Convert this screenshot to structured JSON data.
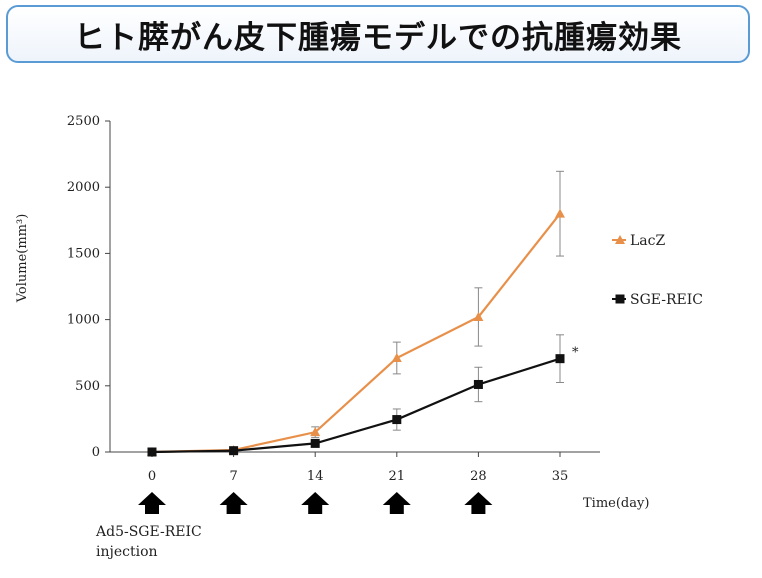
{
  "title": "ヒト膵がん皮下腫瘍モデルでの抗腫瘍効果",
  "chart_data": {
    "type": "line",
    "xlabel": "Time(day)",
    "ylabel": "Volume(mm³)",
    "x": [
      0,
      7,
      14,
      21,
      28,
      35
    ],
    "xticks": [
      "0",
      "7",
      "14",
      "21",
      "28",
      "35"
    ],
    "yticks": [
      "0",
      "500",
      "1000",
      "1500",
      "2000",
      "2500"
    ],
    "ylim": [
      0,
      2500
    ],
    "grid": false,
    "legend_position": "right",
    "series": [
      {
        "name": "LacZ",
        "color": "#e8904a",
        "marker": "triangle",
        "values": [
          0,
          15,
          150,
          710,
          1020,
          1800
        ],
        "errors": [
          0,
          8,
          40,
          120,
          220,
          320
        ]
      },
      {
        "name": "SGE-REIC",
        "color": "#111111",
        "marker": "square",
        "values": [
          0,
          10,
          65,
          245,
          510,
          705
        ],
        "errors": [
          0,
          6,
          20,
          80,
          130,
          180
        ]
      }
    ],
    "annotation": "*",
    "injection_days": [
      0,
      7,
      14,
      21,
      28
    ],
    "injection_label_line1": "Ad5-SGE-REIC",
    "injection_label_line2": "injection"
  }
}
